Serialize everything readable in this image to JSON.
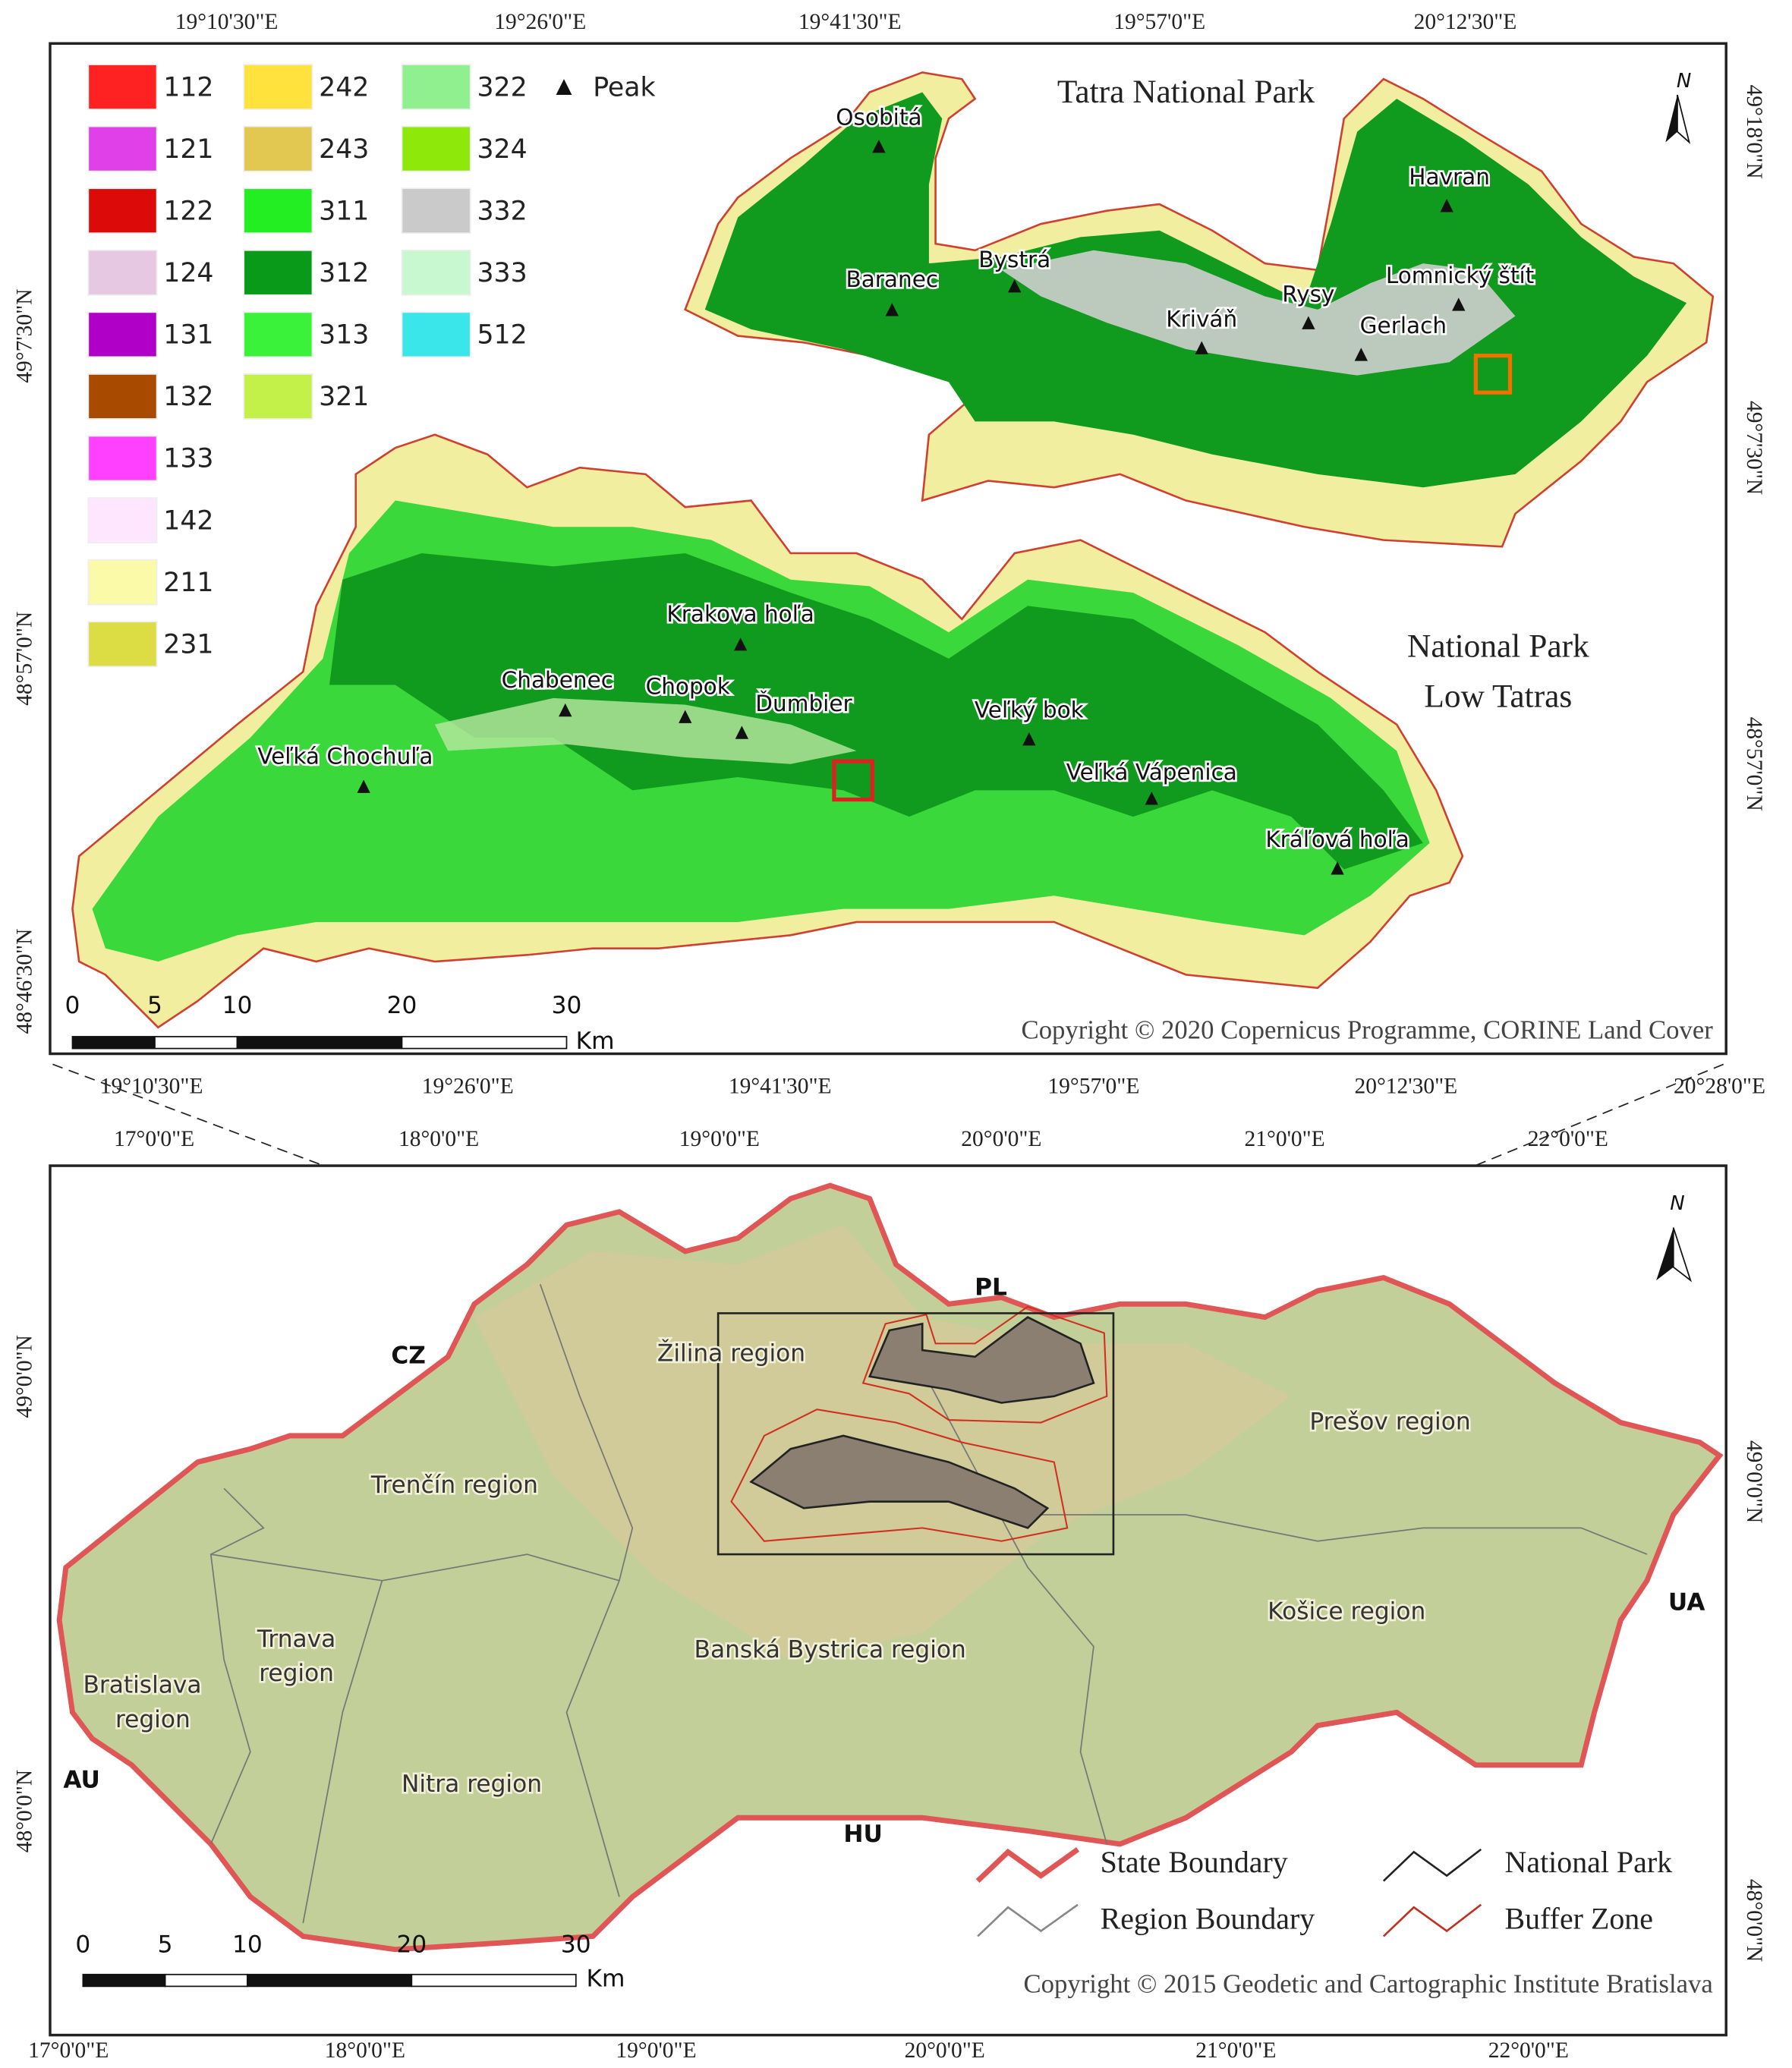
{
  "top_map": {
    "title": "Tatra National Park",
    "subtitle_lines": [
      "National Park",
      "Low Tatras"
    ],
    "legend": [
      {
        "code": "112",
        "color": "#ff2222"
      },
      {
        "code": "121",
        "color": "#e040e8"
      },
      {
        "code": "122",
        "color": "#dd0a0a"
      },
      {
        "code": "124",
        "color": "#e6c8e2"
      },
      {
        "code": "131",
        "color": "#b000c8"
      },
      {
        "code": "132",
        "color": "#a84a00"
      },
      {
        "code": "133",
        "color": "#ff40ff"
      },
      {
        "code": "142",
        "color": "#ffe6ff"
      },
      {
        "code": "211",
        "color": "#fafaa8"
      },
      {
        "code": "231",
        "color": "#dcdc44"
      },
      {
        "code": "242",
        "color": "#ffe23c"
      },
      {
        "code": "243",
        "color": "#e2c850"
      },
      {
        "code": "311",
        "color": "#22ee22"
      },
      {
        "code": "312",
        "color": "#0a9a1a"
      },
      {
        "code": "313",
        "color": "#3af23a"
      },
      {
        "code": "321",
        "color": "#c4f04a"
      },
      {
        "code": "322",
        "color": "#90f090"
      },
      {
        "code": "324",
        "color": "#8ee80a"
      },
      {
        "code": "332",
        "color": "#cacaca"
      },
      {
        "code": "333",
        "color": "#c8f8d0"
      },
      {
        "code": "512",
        "color": "#3ae6ea"
      }
    ],
    "peak_legend": "Peak",
    "peaks": [
      "Osobitá",
      "Baranec",
      "Bystrá",
      "Kriváň",
      "Rysy",
      "Gerlach",
      "Lomnický štít",
      "Havran",
      "Krakova hoľa",
      "Chabenec",
      "Chopok",
      "Ďumbier",
      "Veľký bok",
      "Veľká Chochuľa",
      "Veľká Vápenica",
      "Kráľová hoľa"
    ],
    "axis_top": [
      "19°10'30\"E",
      "19°26'0\"E",
      "19°41'30\"E",
      "19°57'0\"E",
      "20°12'30\"E"
    ],
    "axis_bottom": [
      "19°10'30\"E",
      "19°26'0\"E",
      "19°41'30\"E",
      "19°57'0\"E",
      "20°12'30\"E",
      "20°28'0\"E"
    ],
    "axis_left": [
      "49°7'30\"N",
      "48°57'0\"N",
      "48°46'30\"N"
    ],
    "axis_right": [
      "49°18'0\"N",
      "49°7'30\"N",
      "48°57'0\"N"
    ],
    "north": "N",
    "scale_ticks": [
      0,
      5,
      10,
      20,
      30
    ],
    "scale_unit": "Km",
    "copyright": "Copyright © 2020 Copernicus Programme, CORINE Land Cover"
  },
  "bottom_map": {
    "countries": [
      "PL",
      "CZ",
      "UA",
      "AU",
      "HU"
    ],
    "regions": [
      [
        "Žilina region"
      ],
      [
        "Prešov region"
      ],
      [
        "Trenčín region"
      ],
      [
        "Košice region"
      ],
      [
        "Trnava",
        "region"
      ],
      [
        "Banská Bystrica region"
      ],
      [
        "Bratislava",
        "region"
      ],
      [
        "Nitra region"
      ]
    ],
    "legend": [
      "State Boundary",
      "National Park",
      "Region Boundary",
      "Buffer Zone"
    ],
    "axis_top": [
      "17°0'0\"E",
      "18°0'0\"E",
      "19°0'0\"E",
      "20°0'0\"E",
      "21°0'0\"E",
      "22°0'0\"E"
    ],
    "axis_bottom": [
      "17°0'0\"E",
      "18°0'0\"E",
      "19°0'0\"E",
      "20°0'0\"E",
      "21°0'0\"E",
      "22°0'0\"E"
    ],
    "axis_left": [
      "49°0'0\"N",
      "48°0'0\"N"
    ],
    "axis_right": [
      "49°0'0\"N",
      "48°0'0\"N"
    ],
    "north": "N",
    "scale_ticks": [
      0,
      5,
      10,
      20,
      30
    ],
    "scale_unit": "Km",
    "copyright": "Copyright © 2015 Geodetic and Cartographic Institute Bratislava"
  }
}
